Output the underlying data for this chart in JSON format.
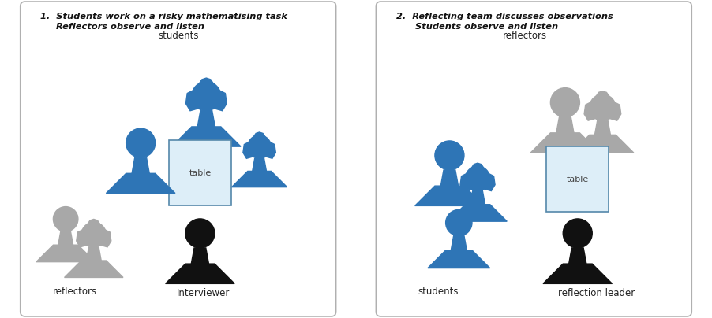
{
  "bg_color": "#ffffff",
  "border_color": "#b0b0b0",
  "blue_color": "#2E75B6",
  "gray_color": "#A8A8A8",
  "black_color": "#111111",
  "table_fill": "#ddeef8",
  "table_edge": "#5588aa",
  "panel1_title": "1.  Students work on a risky mathematising task\n     Reflectors observe and listen",
  "panel2_title": "2.  Reflecting team discusses observations\n      Students observe and listen",
  "table_label": "table"
}
